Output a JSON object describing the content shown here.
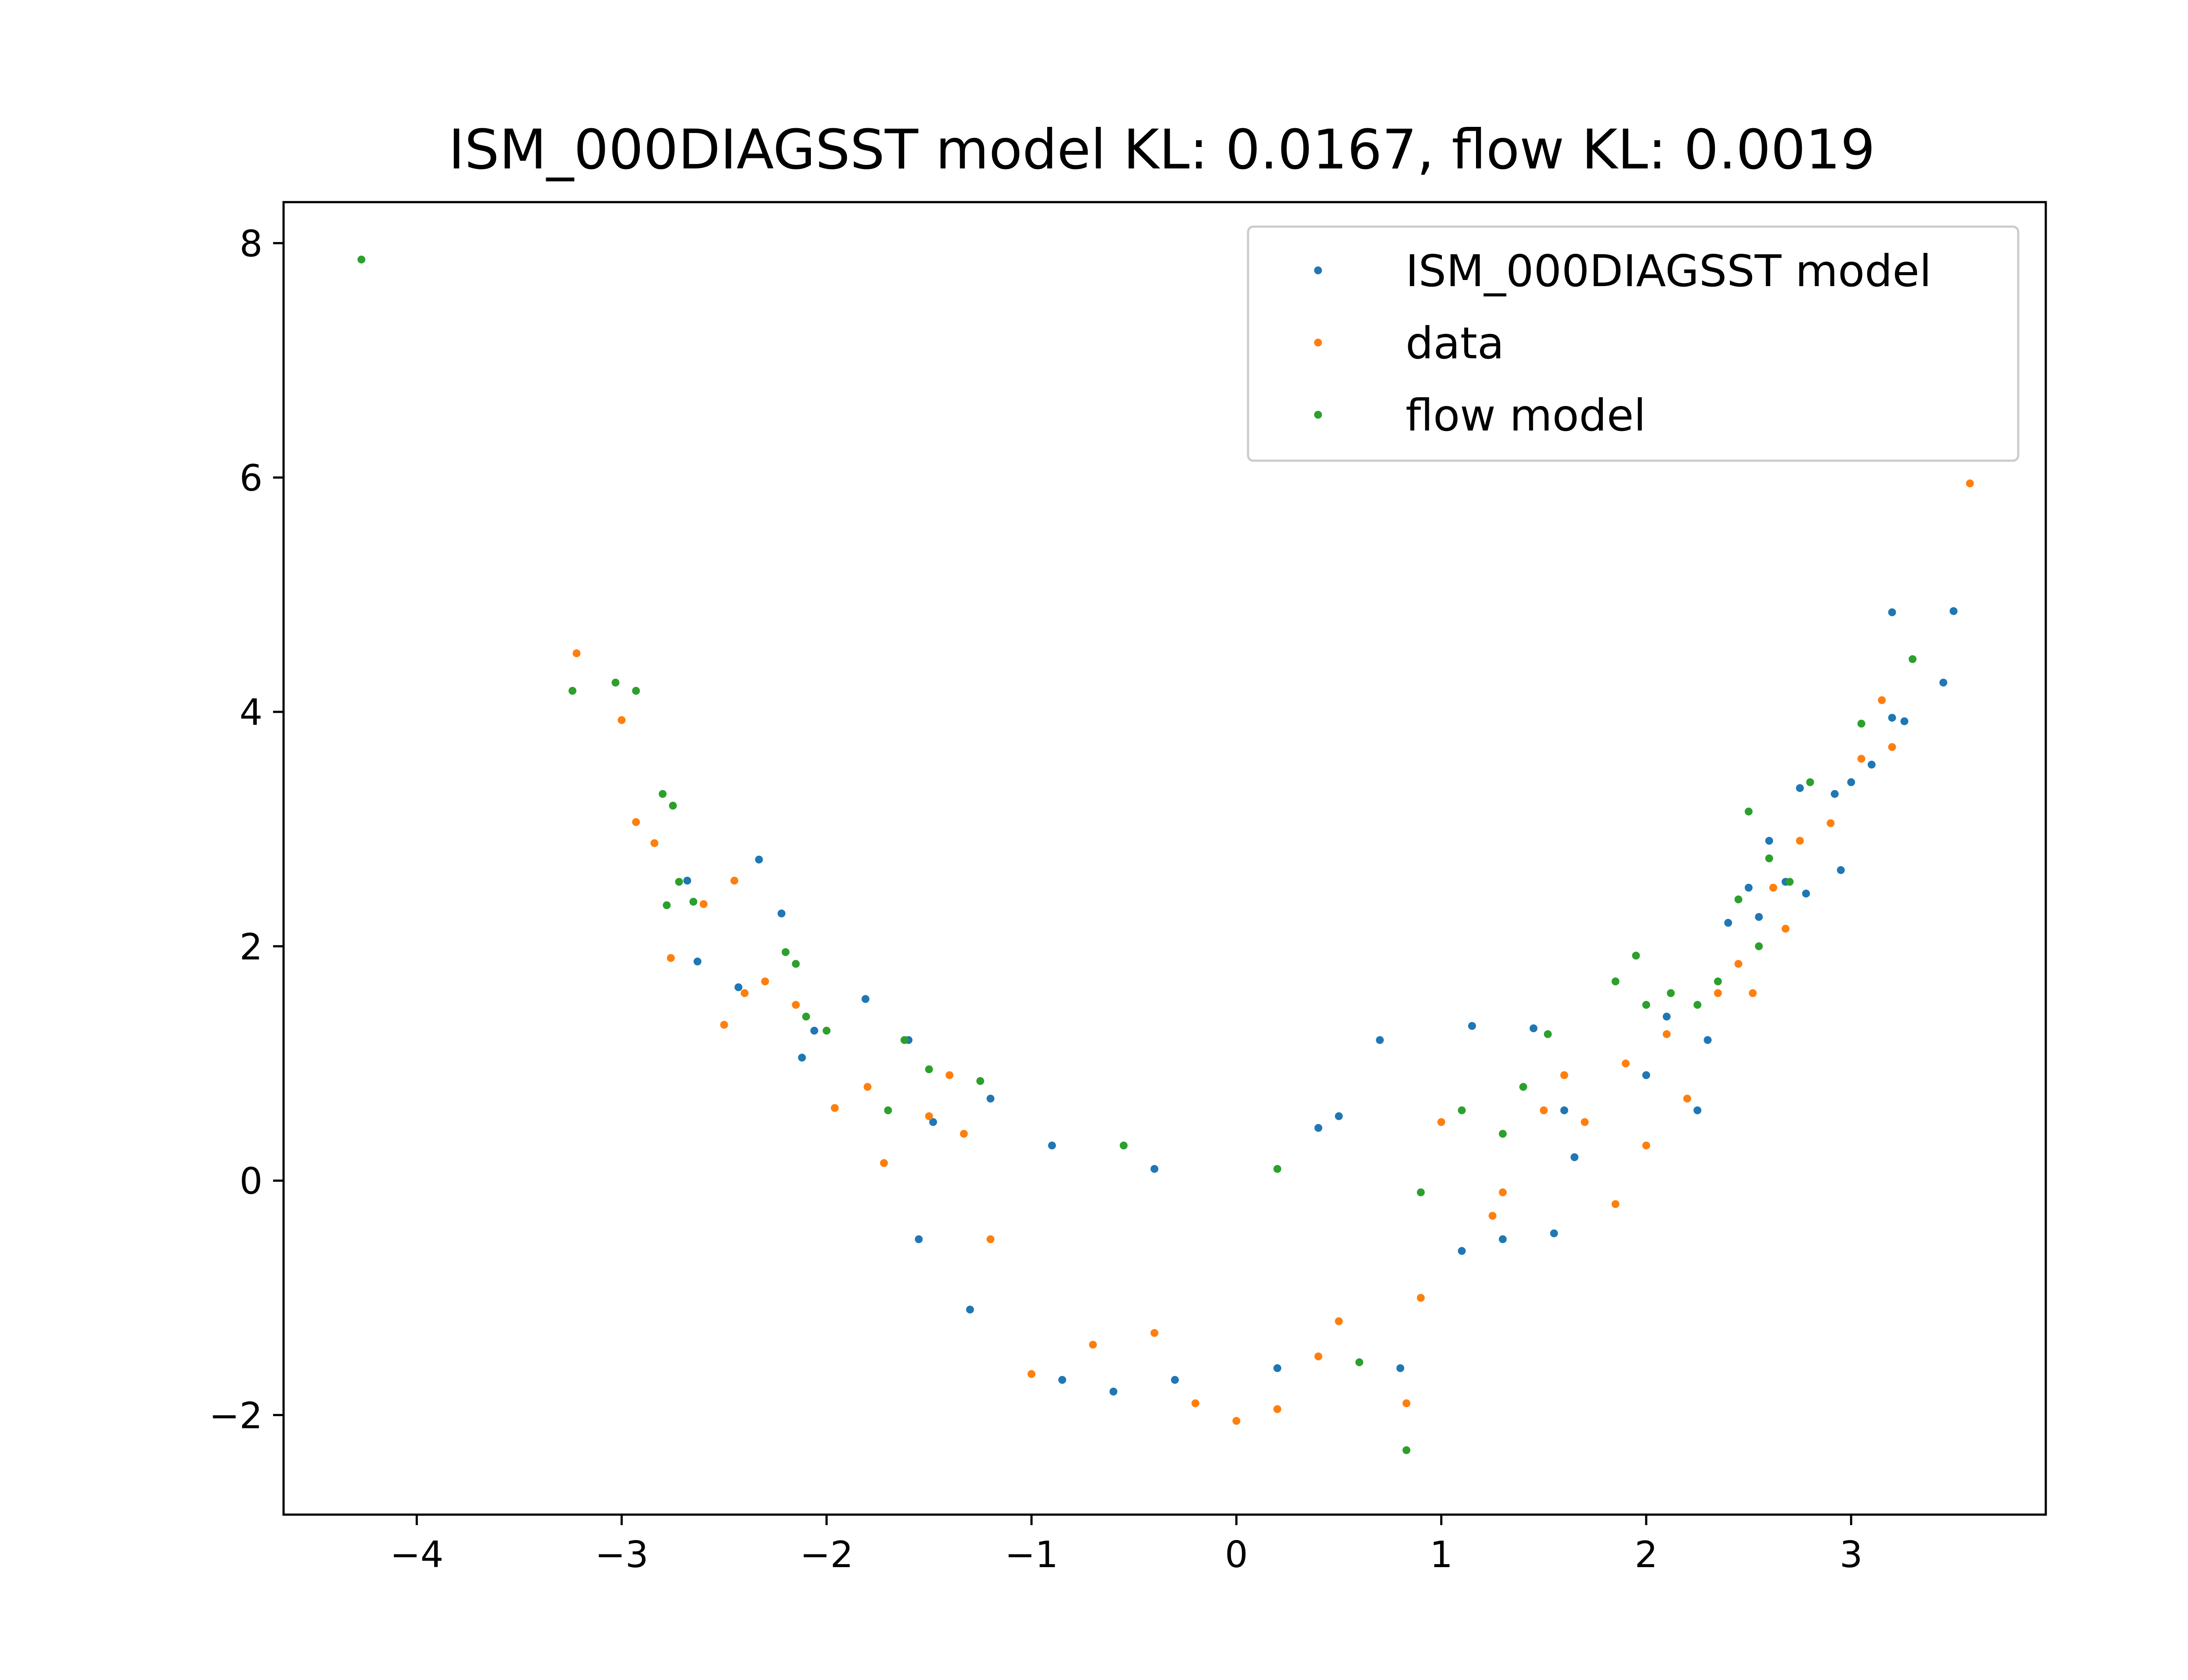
{
  "chart_data": {
    "type": "scatter",
    "title": "ISM_000DIAGSST model KL: 0.0167, flow KL: 0.0019",
    "xlabel": "",
    "ylabel": "",
    "xlim": [
      -4.65,
      3.95
    ],
    "ylim": [
      -2.85,
      8.35
    ],
    "x_ticks": [
      -4,
      -3,
      -2,
      -1,
      0,
      1,
      2,
      3
    ],
    "y_ticks": [
      -2,
      0,
      2,
      4,
      6,
      8
    ],
    "grid": false,
    "legend_position": "top-right",
    "series": [
      {
        "name": "ISM_000DIAGSST model",
        "color": "#1f77b4",
        "points": [
          [
            -2.68,
            2.56
          ],
          [
            -2.33,
            2.74
          ],
          [
            -2.63,
            1.87
          ],
          [
            -2.43,
            1.65
          ],
          [
            -2.22,
            2.28
          ],
          [
            -1.81,
            1.55
          ],
          [
            -2.06,
            1.28
          ],
          [
            -2.12,
            1.05
          ],
          [
            -1.6,
            1.2
          ],
          [
            -1.48,
            0.5
          ],
          [
            -1.2,
            0.7
          ],
          [
            -0.9,
            0.3
          ],
          [
            -0.4,
            0.1
          ],
          [
            0.4,
            0.45
          ],
          [
            0.5,
            0.55
          ],
          [
            0.7,
            1.2
          ],
          [
            1.15,
            1.32
          ],
          [
            1.45,
            1.3
          ],
          [
            1.6,
            0.6
          ],
          [
            2.0,
            0.9
          ],
          [
            2.1,
            1.4
          ],
          [
            2.3,
            1.2
          ],
          [
            2.25,
            0.6
          ],
          [
            2.5,
            2.5
          ],
          [
            2.6,
            2.9
          ],
          [
            2.75,
            3.35
          ],
          [
            2.68,
            2.55
          ],
          [
            2.92,
            3.3
          ],
          [
            3.0,
            3.4
          ],
          [
            3.1,
            3.55
          ],
          [
            3.2,
            3.95
          ],
          [
            3.26,
            3.92
          ],
          [
            3.45,
            4.25
          ],
          [
            3.5,
            4.86
          ],
          [
            3.2,
            4.85
          ],
          [
            2.55,
            2.25
          ],
          [
            2.4,
            2.2
          ],
          [
            2.78,
            2.45
          ],
          [
            2.95,
            2.65
          ],
          [
            1.65,
            0.2
          ],
          [
            1.55,
            -0.45
          ],
          [
            1.3,
            -0.5
          ],
          [
            1.1,
            -0.6
          ],
          [
            0.8,
            -1.6
          ],
          [
            0.2,
            -1.6
          ],
          [
            -0.3,
            -1.7
          ],
          [
            -0.6,
            -1.8
          ],
          [
            -0.85,
            -1.7
          ],
          [
            -1.3,
            -1.1
          ],
          [
            -1.55,
            -0.5
          ]
        ]
      },
      {
        "name": "data",
        "color": "#ff7f0e",
        "points": [
          [
            -3.22,
            4.5
          ],
          [
            -3.0,
            3.93
          ],
          [
            -2.93,
            3.06
          ],
          [
            -2.84,
            2.88
          ],
          [
            -2.76,
            1.9
          ],
          [
            -2.45,
            2.56
          ],
          [
            -2.6,
            2.36
          ],
          [
            -2.4,
            1.6
          ],
          [
            -2.5,
            1.33
          ],
          [
            -2.3,
            1.7
          ],
          [
            -2.15,
            1.5
          ],
          [
            -1.96,
            0.62
          ],
          [
            -1.72,
            0.15
          ],
          [
            -1.5,
            0.55
          ],
          [
            -1.4,
            0.9
          ],
          [
            -1.33,
            0.4
          ],
          [
            -1.0,
            -1.65
          ],
          [
            0.4,
            -1.5
          ],
          [
            0.83,
            -1.9
          ],
          [
            0.0,
            -2.05
          ],
          [
            -0.2,
            -1.9
          ],
          [
            0.2,
            -1.95
          ],
          [
            1.0,
            0.5
          ],
          [
            1.25,
            -0.3
          ],
          [
            1.5,
            0.6
          ],
          [
            1.7,
            0.5
          ],
          [
            1.85,
            -0.2
          ],
          [
            1.9,
            1.0
          ],
          [
            2.0,
            0.3
          ],
          [
            2.1,
            1.25
          ],
          [
            2.2,
            0.7
          ],
          [
            2.35,
            1.6
          ],
          [
            2.45,
            1.85
          ],
          [
            2.52,
            1.6
          ],
          [
            2.62,
            2.5
          ],
          [
            2.68,
            2.15
          ],
          [
            2.75,
            2.9
          ],
          [
            3.05,
            3.6
          ],
          [
            3.15,
            4.1
          ],
          [
            3.2,
            3.7
          ],
          [
            3.58,
            5.95
          ],
          [
            2.9,
            3.05
          ],
          [
            1.6,
            0.9
          ],
          [
            1.3,
            -0.1
          ],
          [
            -1.8,
            0.8
          ],
          [
            -0.4,
            -1.3
          ],
          [
            0.5,
            -1.2
          ],
          [
            -0.7,
            -1.4
          ],
          [
            0.9,
            -1.0
          ],
          [
            -1.2,
            -0.5
          ]
        ]
      },
      {
        "name": "flow model",
        "color": "#2ca02c",
        "points": [
          [
            -4.27,
            7.86
          ],
          [
            -3.24,
            4.18
          ],
          [
            -3.03,
            4.25
          ],
          [
            -2.93,
            4.18
          ],
          [
            -2.8,
            3.3
          ],
          [
            -2.75,
            3.2
          ],
          [
            -2.72,
            2.55
          ],
          [
            -2.78,
            2.35
          ],
          [
            -2.65,
            2.38
          ],
          [
            -2.2,
            1.95
          ],
          [
            -2.15,
            1.85
          ],
          [
            -2.1,
            1.4
          ],
          [
            -2.0,
            1.28
          ],
          [
            -1.62,
            1.2
          ],
          [
            -1.5,
            0.95
          ],
          [
            -1.25,
            0.85
          ],
          [
            -0.55,
            0.3
          ],
          [
            0.2,
            0.1
          ],
          [
            0.9,
            -0.1
          ],
          [
            0.83,
            -2.3
          ],
          [
            1.1,
            0.6
          ],
          [
            1.4,
            0.8
          ],
          [
            1.52,
            1.25
          ],
          [
            1.85,
            1.7
          ],
          [
            1.95,
            1.92
          ],
          [
            2.0,
            1.5
          ],
          [
            2.12,
            1.6
          ],
          [
            2.25,
            1.5
          ],
          [
            2.35,
            1.7
          ],
          [
            2.45,
            2.4
          ],
          [
            2.55,
            2.0
          ],
          [
            2.6,
            2.75
          ],
          [
            2.7,
            2.55
          ],
          [
            2.8,
            3.4
          ],
          [
            2.5,
            3.15
          ],
          [
            3.05,
            3.9
          ],
          [
            3.3,
            4.45
          ],
          [
            1.3,
            0.4
          ],
          [
            -1.7,
            0.6
          ],
          [
            0.6,
            -1.55
          ]
        ]
      }
    ]
  }
}
